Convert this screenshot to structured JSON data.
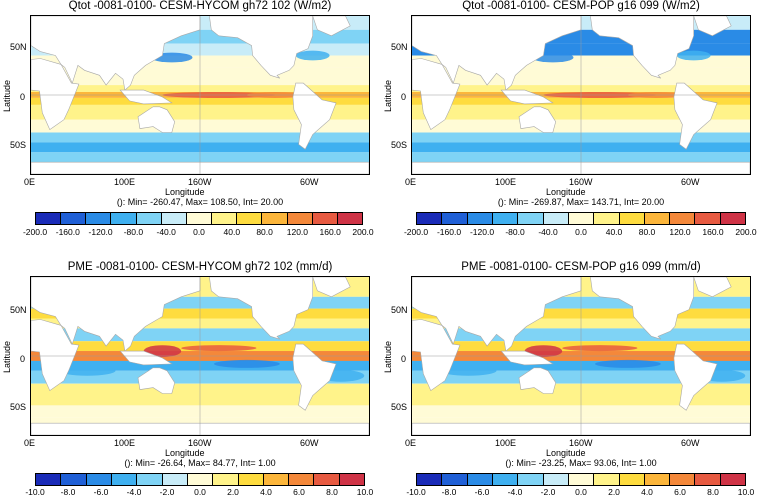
{
  "panels": [
    {
      "title": "Qtot -0081-0100- CESM-HYCOM gh72 102 (W/m2)",
      "stats": "(): Min= -260.47, Max= 108.50, Int= 20.00",
      "xlabel": "Longitude",
      "ylabel": "Latitude",
      "xticks": [
        "0E",
        "100E",
        "160W",
        "60W"
      ],
      "yticks": [
        "50N",
        "0",
        "50S"
      ],
      "colorbar_ticks": [
        "-200.0",
        "-160.0",
        "-120.0",
        "-80.0",
        "-40.0",
        "0.0",
        "40.0",
        "80.0",
        "120.0",
        "160.0",
        "200.0"
      ]
    },
    {
      "title": "Qtot -0081-0100- CESM-POP g16 099 (W/m2)",
      "stats": "(): Min= -269.87, Max= 143.71, Int= 20.00",
      "xlabel": "Longitude",
      "ylabel": "Latitude",
      "xticks": [
        "0E",
        "100E",
        "160W",
        "60W"
      ],
      "yticks": [
        "50N",
        "0",
        "50S"
      ],
      "colorbar_ticks": [
        "-200.0",
        "-160.0",
        "-120.0",
        "-80.0",
        "-40.0",
        "0.0",
        "40.0",
        "80.0",
        "120.0",
        "160.0",
        "200.0"
      ]
    },
    {
      "title": "PME -0081-0100- CESM-HYCOM gh72 102 (mm/d)",
      "stats": "(): Min= -26.64, Max= 84.77, Int= 1.00",
      "xlabel": "Longitude",
      "ylabel": "Latitude",
      "xticks": [
        "0E",
        "100E",
        "160W",
        "60W"
      ],
      "yticks": [
        "50N",
        "0",
        "50S"
      ],
      "colorbar_ticks": [
        "-10.0",
        "-8.0",
        "-6.0",
        "-4.0",
        "-2.0",
        "0.0",
        "2.0",
        "4.0",
        "6.0",
        "8.0",
        "10.0"
      ]
    },
    {
      "title": "PME -0081-0100- CESM-POP g16 099 (mm/d)",
      "stats": "(): Min= -23.25, Max= 93.06, Int= 1.00",
      "xlabel": "Longitude",
      "ylabel": "Latitude",
      "xticks": [
        "0E",
        "100E",
        "160W",
        "60W"
      ],
      "yticks": [
        "50N",
        "0",
        "50S"
      ],
      "colorbar_ticks": [
        "-10.0",
        "-8.0",
        "-6.0",
        "-4.0",
        "-2.0",
        "0.0",
        "2.0",
        "4.0",
        "6.0",
        "8.0",
        "10.0"
      ]
    }
  ],
  "colors": {
    "scale": [
      "#1a2bb8",
      "#1f5fd6",
      "#2a8be6",
      "#3fb0f0",
      "#7fd3f5",
      "#c8ecf8",
      "#fffbd6",
      "#fff38a",
      "#fedc3f",
      "#fcb63b",
      "#f4883a",
      "#e75a41",
      "#cf3346"
    ],
    "land": "#ffffff",
    "coast": "#a9a9a9"
  }
}
